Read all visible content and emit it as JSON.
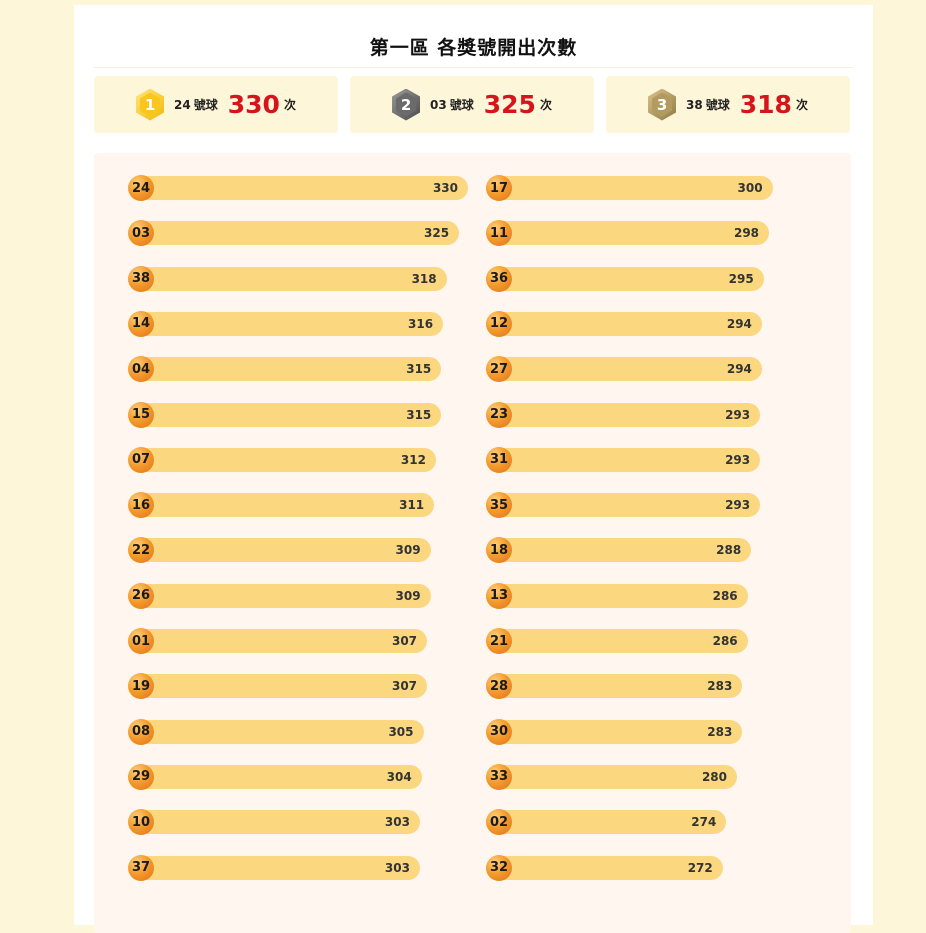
{
  "title": "第一區 各獎號開出次數",
  "top3": [
    {
      "rank": "1",
      "number": "24",
      "suffix": "號球",
      "count": "330",
      "unit": "次",
      "medal": "gold"
    },
    {
      "rank": "2",
      "number": "03",
      "suffix": "號球",
      "count": "325",
      "unit": "次",
      "medal": "silver"
    },
    {
      "rank": "3",
      "number": "38",
      "suffix": "號球",
      "count": "318",
      "unit": "次",
      "medal": "bronze"
    }
  ],
  "colors": {
    "bar": "#fbd87f",
    "count": "#d6141c",
    "ball": "#f49b2c"
  },
  "chart_data": {
    "type": "bar",
    "orientation": "horizontal",
    "columns": [
      {
        "categories": [
          "24",
          "03",
          "38",
          "14",
          "04",
          "15",
          "07",
          "16",
          "22",
          "26",
          "01",
          "19",
          "08",
          "29",
          "10",
          "37"
        ],
        "values": [
          330,
          325,
          318,
          316,
          315,
          315,
          312,
          311,
          309,
          309,
          307,
          307,
          305,
          304,
          303,
          303
        ]
      },
      {
        "categories": [
          "17",
          "11",
          "36",
          "12",
          "27",
          "23",
          "31",
          "35",
          "18",
          "13",
          "21",
          "28",
          "30",
          "33",
          "02",
          "32"
        ],
        "values": [
          300,
          298,
          295,
          294,
          294,
          293,
          293,
          293,
          288,
          286,
          286,
          283,
          283,
          280,
          274,
          272
        ]
      }
    ]
  }
}
